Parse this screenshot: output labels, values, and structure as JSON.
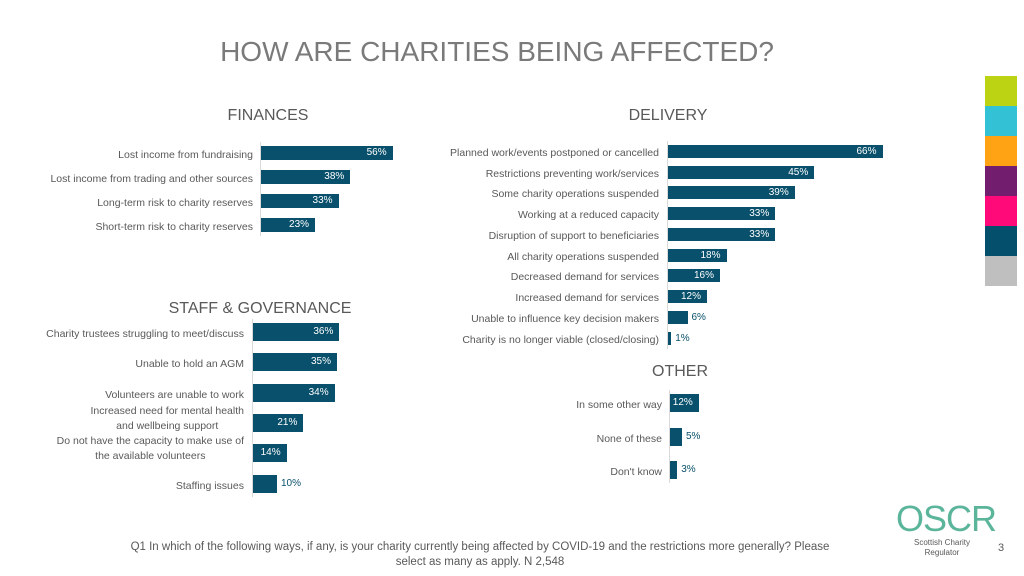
{
  "page": {
    "title": "HOW ARE CHARITIES BEING AFFECTED?",
    "footnote_line1": "Q1 In which of the following ways, if any, is your charity currently being affected by COVID-19 and the restrictions more generally? Please",
    "footnote_line2": "select as many as apply. N 2,548",
    "logo_main": "OSCR",
    "logo_sub": "Scottish Charity Regulator",
    "page_number": "3",
    "bar_color": "#08506b",
    "side_swatches": [
      "#bcd313",
      "#33c1d6",
      "#ffa314",
      "#721d6e",
      "#ff0a78",
      "#044f6c",
      "#bfbfbf"
    ]
  },
  "chart_data": [
    {
      "type": "bar",
      "orientation": "horizontal",
      "title": "FINANCES",
      "categories": [
        "Lost income from fundraising",
        "Lost income from trading and other sources",
        "Long-term risk to charity reserves",
        "Short-term risk to charity reserves"
      ],
      "values": [
        56,
        38,
        33,
        23
      ],
      "value_labels": [
        "56%",
        "38%",
        "33%",
        "23%"
      ],
      "unit": "%",
      "xlim": [
        0,
        100
      ],
      "grid": false
    },
    {
      "type": "bar",
      "orientation": "horizontal",
      "title": "DELIVERY",
      "categories": [
        "Planned work/events postponed or cancelled",
        "Restrictions preventing work/services",
        "Some charity operations suspended",
        "Working at a reduced capacity",
        "Disruption of support to beneficiaries",
        "All charity operations suspended",
        "Decreased demand for services",
        "Increased demand for services",
        "Unable to influence key decision makers",
        "Charity is no longer viable (closed/closing)"
      ],
      "values": [
        66,
        45,
        39,
        33,
        33,
        18,
        16,
        12,
        6,
        1
      ],
      "value_labels": [
        "66%",
        "45%",
        "39%",
        "33%",
        "33%",
        "18%",
        "16%",
        "12%",
        "6%",
        "1%"
      ],
      "unit": "%",
      "xlim": [
        0,
        100
      ],
      "grid": false
    },
    {
      "type": "bar",
      "orientation": "horizontal",
      "title": "STAFF & GOVERNANCE",
      "categories": [
        "Charity trustees struggling to meet/discuss",
        "Unable to hold an AGM",
        "Volunteers are unable to work",
        "Increased need for mental health and wellbeing support",
        "Do not have the capacity to make use of the available volunteers",
        "Staffing issues"
      ],
      "label_lines": [
        [
          "Charity trustees struggling to meet/discuss"
        ],
        [
          "Unable to hold an AGM"
        ],
        [
          "Volunteers are unable to work"
        ],
        [
          "Increased need for mental health",
          "and wellbeing support"
        ],
        [
          "Do not have the capacity to make use of",
          "the available volunteers"
        ],
        [
          "Staffing issues"
        ]
      ],
      "values": [
        36,
        35,
        34,
        21,
        14,
        10
      ],
      "value_labels": [
        "36%",
        "35%",
        "34%",
        "21%",
        "14%",
        "10%"
      ],
      "unit": "%",
      "xlim": [
        0,
        100
      ],
      "grid": false
    },
    {
      "type": "bar",
      "orientation": "horizontal",
      "title": "OTHER",
      "categories": [
        "In some other way",
        "None of these",
        "Don't know"
      ],
      "values": [
        12,
        5,
        3
      ],
      "value_labels": [
        "12%",
        "5%",
        "3%"
      ],
      "unit": "%",
      "xlim": [
        0,
        100
      ],
      "grid": false
    }
  ]
}
